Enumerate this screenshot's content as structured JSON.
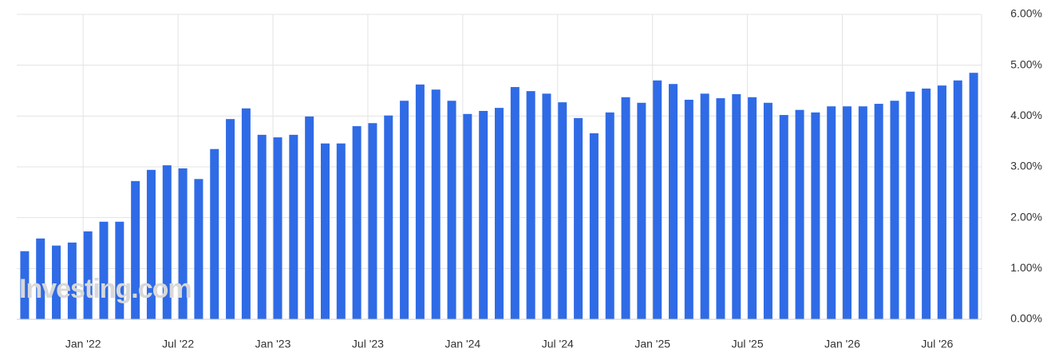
{
  "chart_data": {
    "type": "bar",
    "watermark": "Investing.com",
    "categories": [
      null,
      null,
      null,
      null,
      "Jan '22",
      null,
      null,
      null,
      null,
      null,
      "Jul '22",
      null,
      null,
      null,
      null,
      null,
      "Jan '23",
      null,
      null,
      null,
      null,
      null,
      "Jul '23",
      null,
      null,
      null,
      null,
      null,
      "Jan '24",
      null,
      null,
      null,
      null,
      null,
      "Jul '24",
      null,
      null,
      null,
      null,
      null,
      "Jan '25",
      null,
      null,
      null,
      null,
      null,
      "Jul '25",
      null,
      null,
      null,
      null,
      null,
      "Jan '26",
      null,
      null,
      null,
      null,
      null,
      "Jul '26",
      null,
      null
    ],
    "values": [
      1.34,
      1.59,
      1.45,
      1.51,
      1.73,
      1.92,
      1.92,
      2.72,
      2.94,
      3.03,
      2.97,
      2.76,
      3.35,
      3.94,
      4.15,
      3.63,
      3.58,
      3.63,
      3.99,
      3.46,
      3.46,
      3.8,
      3.86,
      4.01,
      4.3,
      4.62,
      4.52,
      4.3,
      4.04,
      4.1,
      4.16,
      4.57,
      4.49,
      4.44,
      4.27,
      3.96,
      3.66,
      4.07,
      4.37,
      4.26,
      4.7,
      4.63,
      4.32,
      4.44,
      4.35,
      4.43,
      4.37,
      4.26,
      4.02,
      4.12,
      4.07,
      4.19,
      4.19,
      4.19,
      4.24,
      4.3,
      4.48,
      4.54,
      4.6,
      4.7,
      4.85
    ],
    "color": "#2f6be6",
    "ylim": [
      0,
      6
    ],
    "yticks": [
      {
        "value": 0,
        "label": "0.00%"
      },
      {
        "value": 1,
        "label": "1.00%"
      },
      {
        "value": 2,
        "label": "2.00%"
      },
      {
        "value": 3,
        "label": "3.00%"
      },
      {
        "value": 4,
        "label": "4.00%"
      },
      {
        "value": 5,
        "label": "5.00%"
      },
      {
        "value": 6,
        "label": "6.00%"
      }
    ],
    "grid": true
  }
}
